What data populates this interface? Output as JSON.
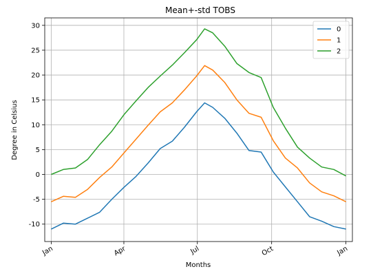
{
  "chart_data": {
    "type": "line",
    "title": "Mean+-std   TOBS",
    "xlabel": "Months",
    "ylabel": "Degree in Celsius",
    "xlim": [
      -8,
      373
    ],
    "ylim": [
      -13.5,
      31.5
    ],
    "grid": true,
    "legend_position": "top-right",
    "x_ticks": [
      {
        "value": 0,
        "label": "Jan"
      },
      {
        "value": 90,
        "label": "Apr"
      },
      {
        "value": 181,
        "label": "Jul"
      },
      {
        "value": 273,
        "label": "Oct"
      },
      {
        "value": 365,
        "label": "Jan"
      }
    ],
    "y_ticks": [
      -10,
      -5,
      0,
      5,
      10,
      15,
      20,
      25,
      30
    ],
    "x": [
      0,
      15,
      30,
      45,
      60,
      75,
      90,
      105,
      120,
      135,
      150,
      165,
      180,
      190,
      200,
      215,
      230,
      245,
      260,
      275,
      290,
      305,
      320,
      335,
      350,
      365
    ],
    "series": [
      {
        "name": "0",
        "color": "#1f77b4",
        "values": [
          -11.0,
          -9.8,
          -10.0,
          -8.8,
          -7.6,
          -5.0,
          -2.6,
          -0.4,
          2.3,
          5.2,
          6.7,
          9.5,
          12.6,
          14.4,
          13.5,
          11.3,
          8.3,
          4.8,
          4.5,
          0.5,
          -2.5,
          -5.5,
          -8.5,
          -9.4,
          -10.5,
          -11.0
        ]
      },
      {
        "name": "1",
        "color": "#ff7f0e",
        "values": [
          -5.5,
          -4.4,
          -4.6,
          -3.0,
          -0.6,
          1.5,
          4.3,
          7.1,
          9.9,
          12.6,
          14.4,
          17.0,
          19.8,
          21.9,
          21.0,
          18.5,
          15.0,
          12.3,
          11.5,
          6.8,
          3.3,
          1.3,
          -1.7,
          -3.5,
          -4.3,
          -5.5
        ]
      },
      {
        "name": "2",
        "color": "#2ca02c",
        "values": [
          0.0,
          1.0,
          1.3,
          3.0,
          6.0,
          8.7,
          12.0,
          14.8,
          17.5,
          19.8,
          22.0,
          24.5,
          27.1,
          29.3,
          28.5,
          25.8,
          22.3,
          20.5,
          19.5,
          13.5,
          9.3,
          5.5,
          3.3,
          1.5,
          1.0,
          -0.3
        ]
      }
    ]
  }
}
